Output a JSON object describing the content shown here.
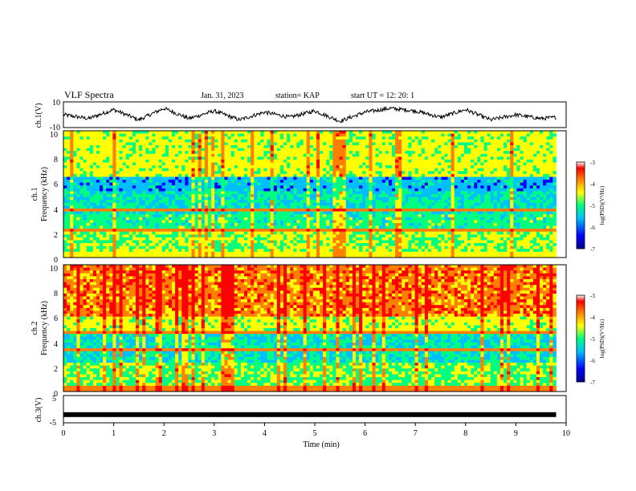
{
  "header": {
    "title": "VLF Spectra",
    "date": "Jan. 31, 2023",
    "station": "station= KAP",
    "start_ut": "start  UT =   12: 20: 1"
  },
  "colors": {
    "colormap": [
      "#00008b",
      "#0000ff",
      "#00bfff",
      "#00ff80",
      "#ffff00",
      "#ff7f00",
      "#ff0000",
      "#ffffff"
    ],
    "trace": "#000000"
  },
  "chart_data": [
    {
      "type": "line",
      "panel": "ch1-waveform",
      "ylabel": "ch.1(V)",
      "ylim": [
        -10,
        10
      ],
      "yticks": [
        "10",
        "-10"
      ],
      "xlim": [
        0,
        9.8
      ],
      "note_values": "noisy waveform oscillating roughly between -6 and +8 V",
      "series": [
        {
          "x": [
            0,
            0.5,
            1,
            1.5,
            2,
            2.5,
            3,
            3.5,
            4,
            4.5,
            5,
            5.5,
            6,
            6.5,
            7,
            7.5,
            8,
            8.5,
            9,
            9.5,
            9.8
          ],
          "y": [
            0,
            -3,
            4,
            -4,
            5,
            -3,
            3,
            -4,
            2,
            -2,
            3,
            -5,
            2,
            5,
            3,
            -2,
            4,
            -4,
            0,
            -3,
            -2
          ]
        }
      ]
    },
    {
      "type": "heatmap",
      "panel": "ch1-spectrogram",
      "ylabel_line1": "ch.1",
      "ylabel_line2": "Frequency (kHz)",
      "ylim": [
        0,
        10
      ],
      "yticks": [
        "0",
        "2",
        "4",
        "6",
        "8",
        "10"
      ],
      "xlim": [
        0,
        9.8
      ],
      "colorbar": {
        "label": "log(PSD)(V²/Hz)",
        "range": [
          -7,
          -3
        ],
        "ticks": [
          "-3",
          "-4",
          "-5",
          "-6",
          "-7"
        ]
      }
    },
    {
      "type": "heatmap",
      "panel": "ch2-spectrogram",
      "ylabel_line1": "ch.2",
      "ylabel_line2": "Frequency (kHz)",
      "ylim": [
        0,
        10
      ],
      "yticks": [
        "0",
        "2",
        "4",
        "6",
        "8",
        "10"
      ],
      "xlim": [
        0,
        9.8
      ],
      "colorbar": {
        "label": "log(PSD)(V²/Hz)",
        "range": [
          -7,
          -3
        ],
        "ticks": [
          "-3",
          "-4",
          "-5",
          "-6",
          "-7"
        ]
      }
    },
    {
      "type": "line",
      "panel": "ch3-waveform",
      "ylabel": "ch.3(V)",
      "ylim": [
        -5,
        5
      ],
      "yticks": [
        "5",
        "-5"
      ],
      "xlim": [
        0,
        9.8
      ],
      "series": [
        {
          "x": [
            0,
            9.8
          ],
          "y": [
            -2,
            -2
          ]
        }
      ]
    }
  ],
  "xaxis": {
    "label": "Time (min)",
    "range": [
      0,
      10
    ],
    "ticks": [
      "0",
      "1",
      "2",
      "3",
      "4",
      "5",
      "6",
      "7",
      "8",
      "9",
      "10"
    ]
  }
}
